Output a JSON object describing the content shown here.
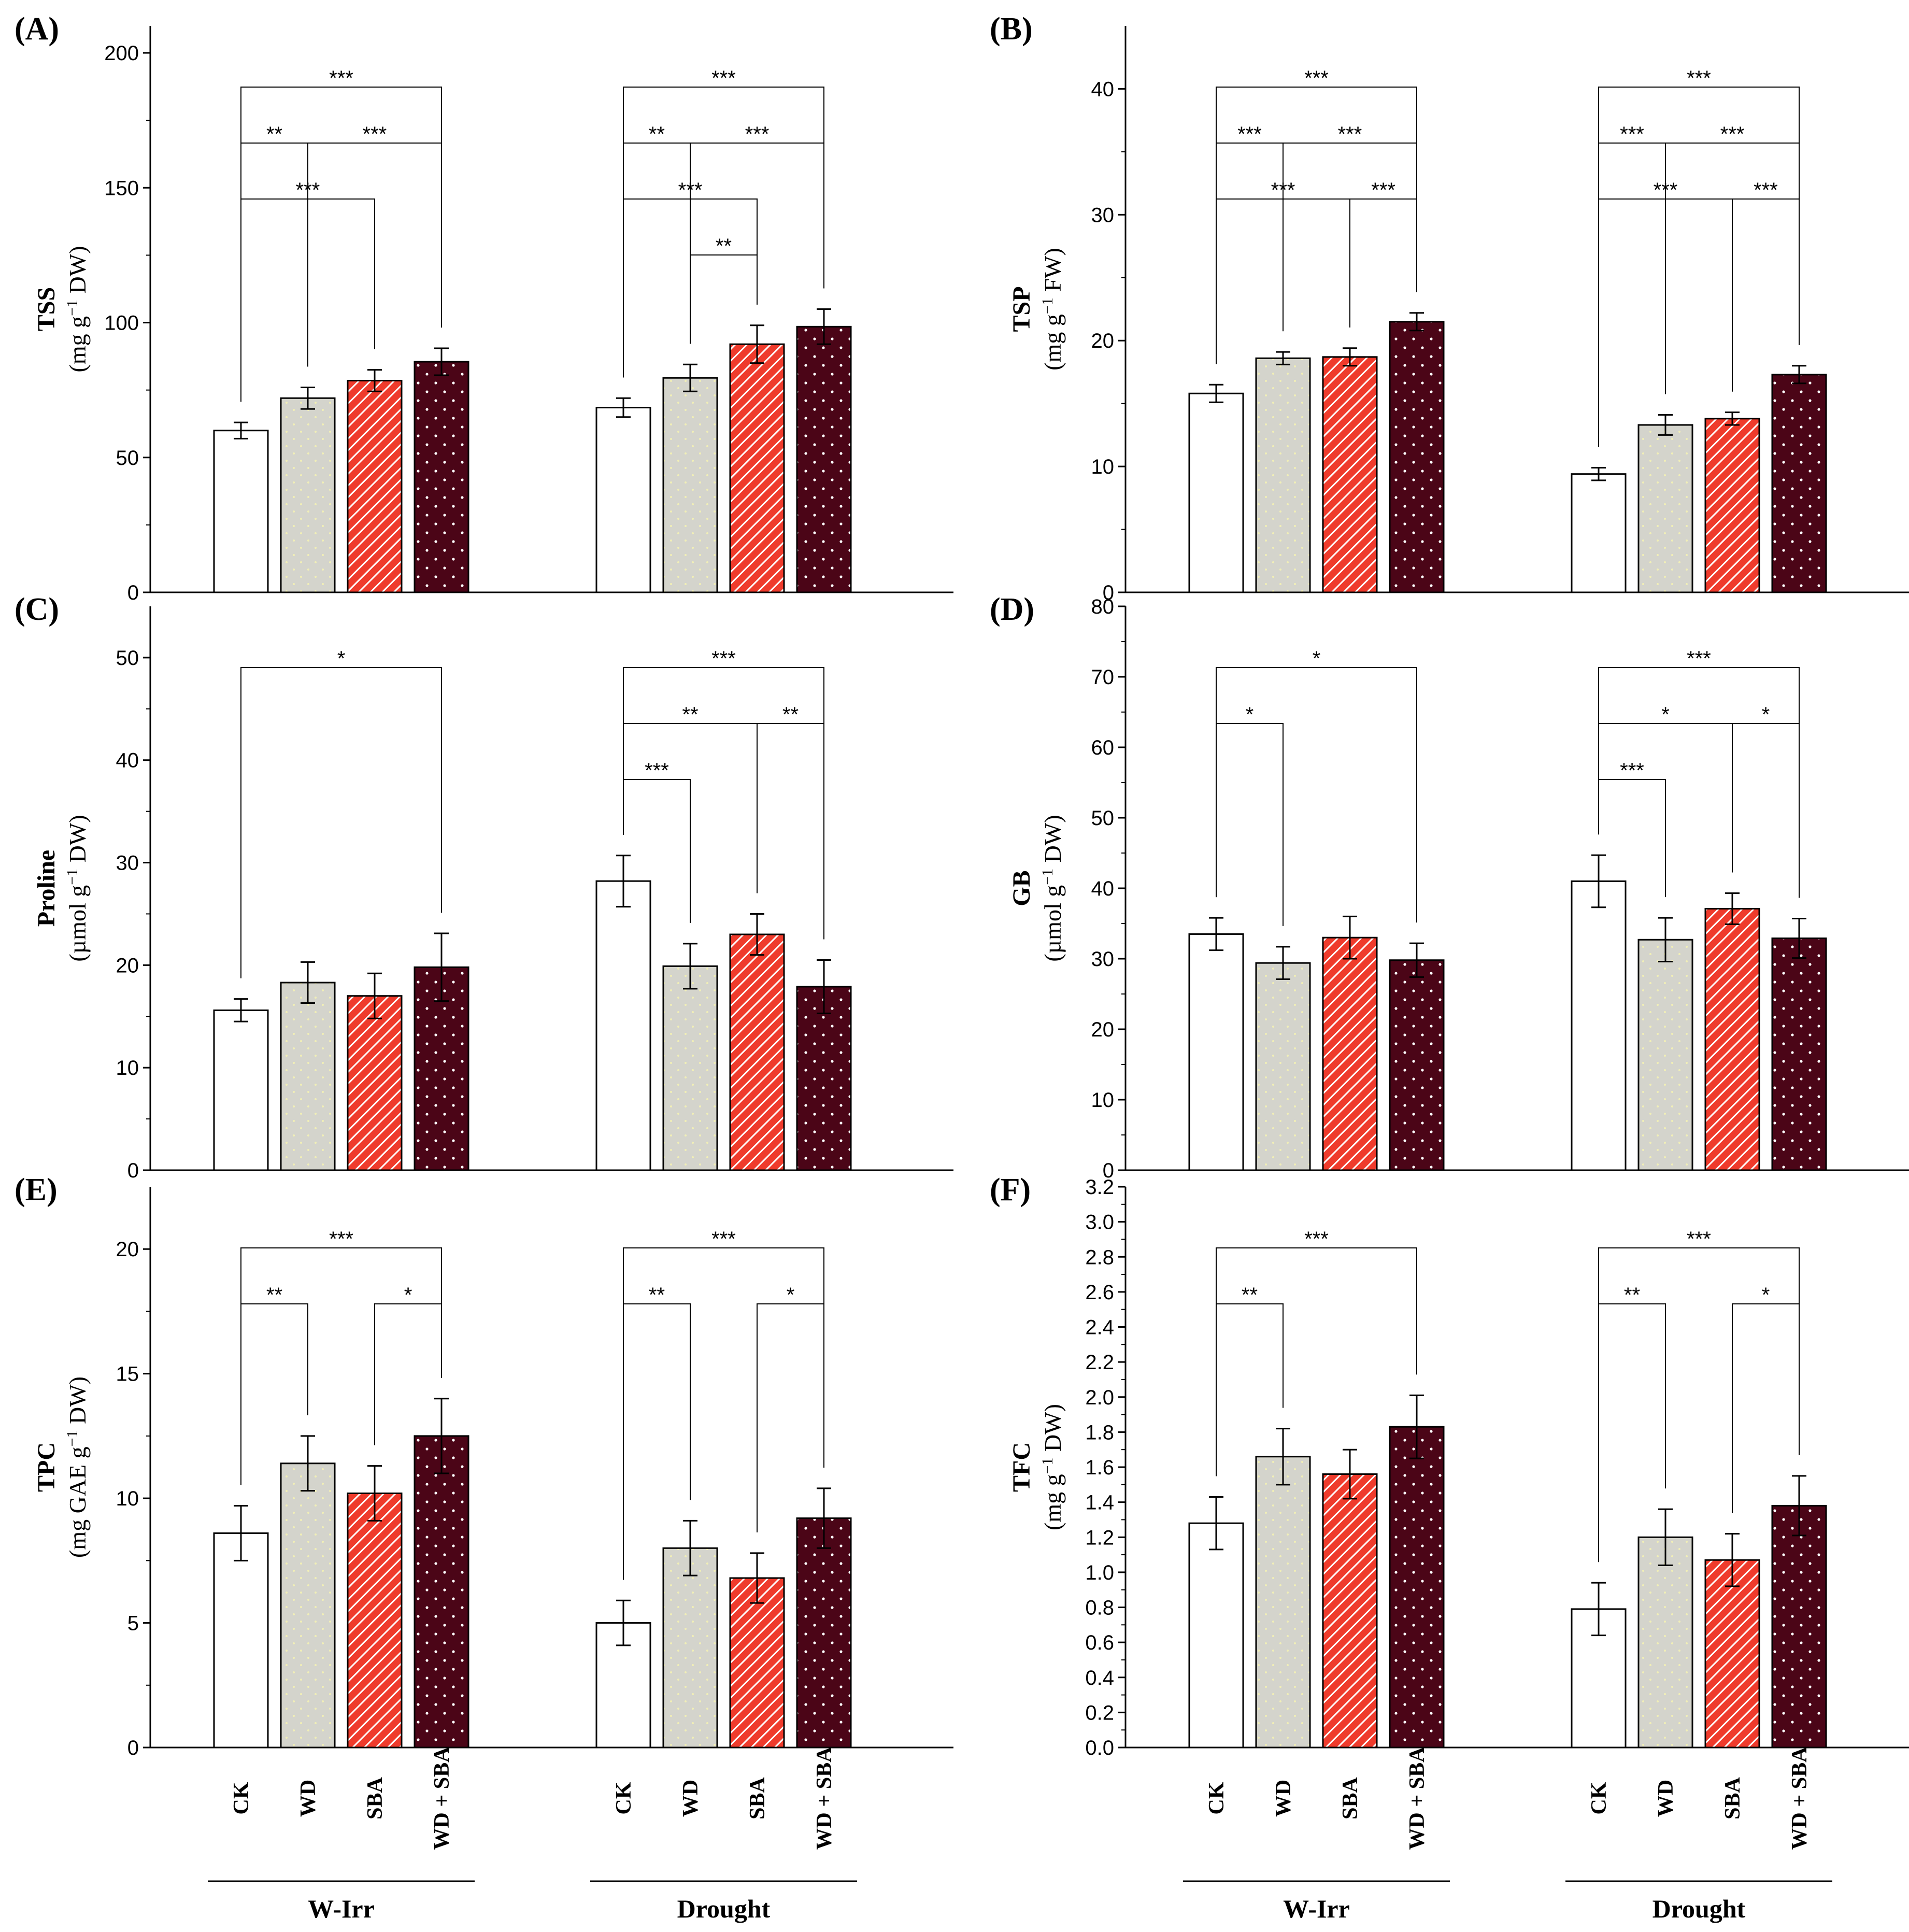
{
  "treatments": [
    "CK",
    "WD",
    "SBA",
    "WD + SBA"
  ],
  "groups": [
    "W-Irr",
    "Drought"
  ],
  "colors": {
    "CK": "#ffffff",
    "WD": "#d4d4cc",
    "SBA": "#ef3b2c",
    "WD + SBA": "#4b0517"
  },
  "chart_data": [
    {
      "type": "bar",
      "panel": "(A)",
      "ylabel_main": "TSS",
      "ylabel_unit": "(mg g",
      "ylabel_sup": "−1",
      "ylabel_unit_end": " DW)",
      "ylim": [
        0,
        210
      ],
      "yticks": [
        0,
        50,
        100,
        150,
        200
      ],
      "categories": [
        "CK",
        "WD",
        "SBA",
        "WD + SBA"
      ],
      "groups": [
        "W-Irr",
        "Drought"
      ],
      "series": [
        {
          "values": [
            60,
            72,
            78.5,
            85.5
          ],
          "errors": [
            3,
            4,
            4,
            5
          ]
        },
        {
          "values": [
            68.5,
            79.5,
            92,
            98.5
          ],
          "errors": [
            3.5,
            5,
            7,
            6.5
          ]
        }
      ],
      "brackets": [
        [
          [
            0,
            3,
            "***"
          ],
          [
            1,
            3,
            "***"
          ],
          [
            0,
            2,
            "***"
          ],
          [
            0,
            1,
            "**"
          ]
        ],
        [
          [
            0,
            3,
            "***"
          ],
          [
            1,
            3,
            "***"
          ],
          [
            0,
            2,
            "***"
          ],
          [
            0,
            1,
            "**"
          ],
          [
            1,
            2,
            "**"
          ]
        ]
      ]
    },
    {
      "type": "bar",
      "panel": "(B)",
      "ylabel_main": "TSP",
      "ylabel_unit": "(mg g",
      "ylabel_sup": "−1",
      "ylabel_unit_end": " FW)",
      "ylim": [
        0,
        45
      ],
      "yticks": [
        0,
        10,
        20,
        30,
        40
      ],
      "categories": [
        "CK",
        "WD",
        "SBA",
        "WD + SBA"
      ],
      "groups": [
        "W-Irr",
        "Drought"
      ],
      "series": [
        {
          "values": [
            15.8,
            18.6,
            18.7,
            21.5
          ],
          "errors": [
            0.7,
            0.5,
            0.7,
            0.7
          ]
        },
        {
          "values": [
            9.4,
            13.3,
            13.8,
            17.3
          ],
          "errors": [
            0.5,
            0.8,
            0.5,
            0.7
          ]
        }
      ],
      "brackets": [
        [
          [
            0,
            3,
            "***"
          ],
          [
            1,
            3,
            "***"
          ],
          [
            0,
            2,
            "***"
          ],
          [
            0,
            1,
            "***"
          ],
          [
            2,
            3,
            "***"
          ]
        ],
        [
          [
            0,
            3,
            "***"
          ],
          [
            1,
            3,
            "***"
          ],
          [
            0,
            2,
            "***"
          ],
          [
            0,
            1,
            "***"
          ],
          [
            2,
            3,
            "***"
          ]
        ]
      ]
    },
    {
      "type": "bar",
      "panel": "(C)",
      "ylabel_main": "Proline",
      "ylabel_unit": "(µmol g",
      "ylabel_sup": "−1",
      "ylabel_unit_end": " DW)",
      "ylim": [
        0,
        55
      ],
      "yticks": [
        0,
        10,
        20,
        30,
        40,
        50
      ],
      "categories": [
        "CK",
        "WD",
        "SBA",
        "WD + SBA"
      ],
      "groups": [
        "W-Irr",
        "Drought"
      ],
      "series": [
        {
          "values": [
            15.6,
            18.3,
            17.0,
            19.8
          ],
          "errors": [
            1.1,
            2.0,
            2.2,
            3.3
          ]
        },
        {
          "values": [
            28.2,
            19.9,
            23.0,
            17.9
          ],
          "errors": [
            2.5,
            2.2,
            2.0,
            2.6
          ]
        }
      ],
      "brackets": [
        [
          [
            0,
            3,
            "*"
          ]
        ],
        [
          [
            0,
            3,
            "***"
          ],
          [
            0,
            2,
            "**"
          ],
          [
            0,
            1,
            "***"
          ],
          [
            2,
            3,
            "**"
          ]
        ]
      ]
    },
    {
      "type": "bar",
      "panel": "(D)",
      "ylabel_main": "GB",
      "ylabel_unit": "(µmol g",
      "ylabel_sup": "−1",
      "ylabel_unit_end": " DW)",
      "ylim": [
        0,
        80
      ],
      "yticks": [
        0,
        10,
        20,
        30,
        40,
        50,
        60,
        70,
        80
      ],
      "categories": [
        "CK",
        "WD",
        "SBA",
        "WD + SBA"
      ],
      "groups": [
        "W-Irr",
        "Drought"
      ],
      "series": [
        {
          "values": [
            33.5,
            29.4,
            33.0,
            29.8
          ],
          "errors": [
            2.3,
            2.3,
            3.0,
            2.4
          ]
        },
        {
          "values": [
            41.0,
            32.7,
            37.1,
            32.9
          ],
          "errors": [
            3.7,
            3.1,
            2.2,
            2.8
          ]
        }
      ],
      "brackets": [
        [
          [
            0,
            3,
            "*"
          ],
          [
            0,
            1,
            "*"
          ]
        ],
        [
          [
            0,
            3,
            "***"
          ],
          [
            0,
            2,
            "*"
          ],
          [
            0,
            1,
            "***"
          ],
          [
            2,
            3,
            "*"
          ]
        ]
      ]
    },
    {
      "type": "bar",
      "panel": "(E)",
      "ylabel_main": "TPC",
      "ylabel_unit": "(mg GAE g",
      "ylabel_sup": "−1",
      "ylabel_unit_end": " DW)",
      "ylim": [
        0,
        22.5
      ],
      "yticks": [
        0,
        5,
        10,
        15,
        20
      ],
      "categories": [
        "CK",
        "WD",
        "SBA",
        "WD + SBA"
      ],
      "groups": [
        "W-Irr",
        "Drought"
      ],
      "series": [
        {
          "values": [
            8.6,
            11.4,
            10.2,
            12.5
          ],
          "errors": [
            1.1,
            1.1,
            1.1,
            1.5
          ]
        },
        {
          "values": [
            5.0,
            8.0,
            6.8,
            9.2
          ],
          "errors": [
            0.9,
            1.1,
            1.0,
            1.2
          ]
        }
      ],
      "brackets": [
        [
          [
            0,
            3,
            "***"
          ],
          [
            0,
            1,
            "**"
          ],
          [
            2,
            3,
            "*"
          ]
        ],
        [
          [
            0,
            3,
            "***"
          ],
          [
            0,
            1,
            "**"
          ],
          [
            2,
            3,
            "*"
          ]
        ]
      ]
    },
    {
      "type": "bar",
      "panel": "(F)",
      "ylabel_main": "TFC",
      "ylabel_unit": "(mg g",
      "ylabel_sup": "−1",
      "ylabel_unit_end": " DW)",
      "ylim": [
        0,
        3.2
      ],
      "yticks": [
        0.0,
        0.2,
        0.4,
        0.6,
        0.8,
        1.0,
        1.2,
        1.4,
        1.6,
        1.8,
        2.0,
        2.2,
        2.4,
        2.6,
        2.8,
        3.0,
        3.2
      ],
      "categories": [
        "CK",
        "WD",
        "SBA",
        "WD + SBA"
      ],
      "groups": [
        "W-Irr",
        "Drought"
      ],
      "series": [
        {
          "values": [
            1.28,
            1.66,
            1.56,
            1.83
          ],
          "errors": [
            0.15,
            0.16,
            0.14,
            0.18
          ]
        },
        {
          "values": [
            0.79,
            1.2,
            1.07,
            1.38
          ],
          "errors": [
            0.15,
            0.16,
            0.15,
            0.17
          ]
        }
      ],
      "brackets": [
        [
          [
            0,
            3,
            "***"
          ],
          [
            0,
            1,
            "**"
          ]
        ],
        [
          [
            0,
            3,
            "***"
          ],
          [
            0,
            1,
            "**"
          ],
          [
            2,
            3,
            "*"
          ]
        ]
      ]
    }
  ]
}
